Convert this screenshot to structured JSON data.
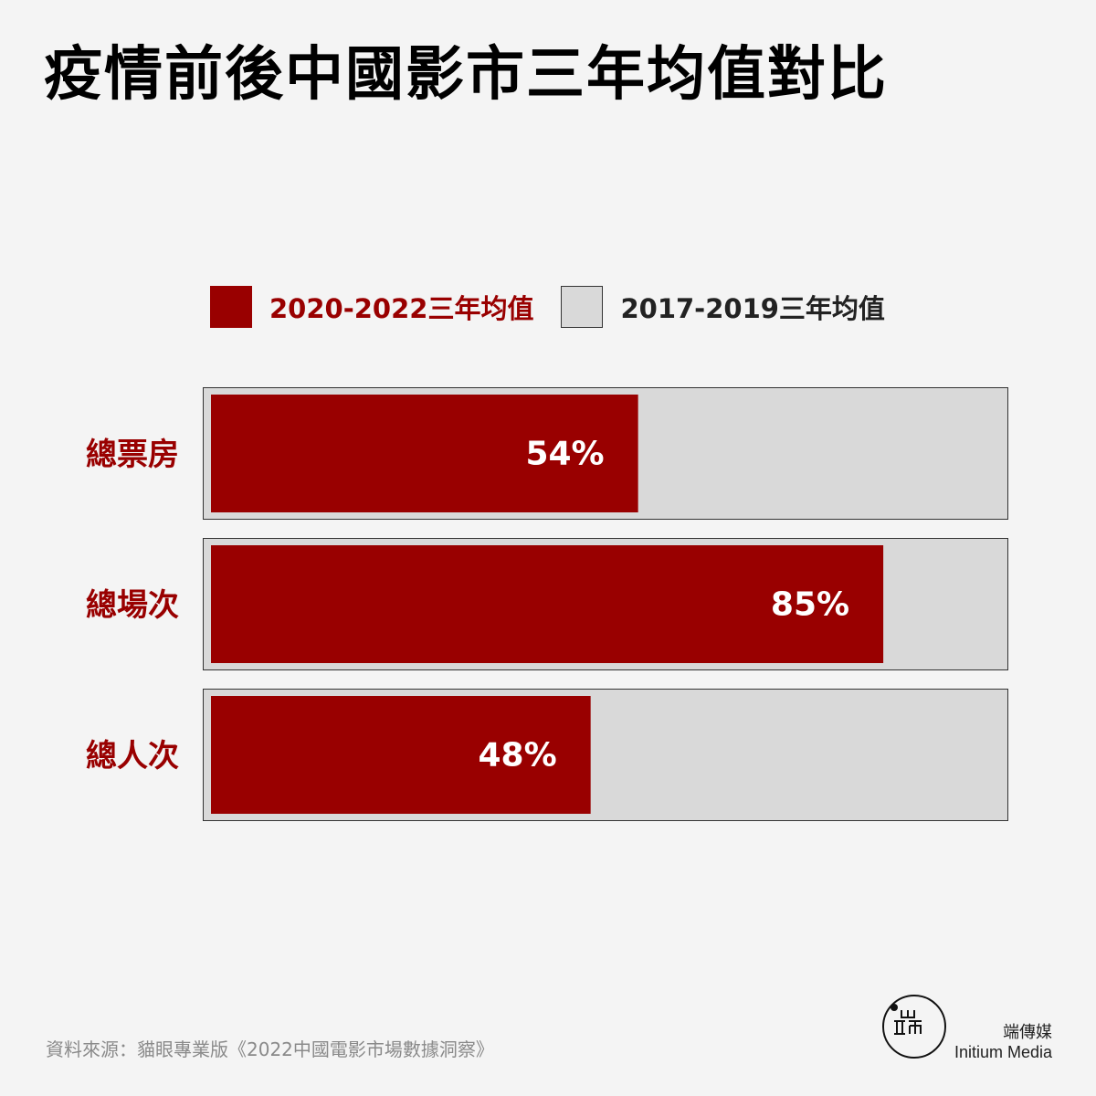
{
  "title": "疫情前後中國影市三年均值對比",
  "colors": {
    "accent": "#990000",
    "baseline": "#d9d9d9",
    "background": "#f4f4f4",
    "border": "#333333"
  },
  "legend": {
    "current": "2020-2022三年均值",
    "baseline": "2017-2019三年均值"
  },
  "chart_data": {
    "type": "bar",
    "orientation": "horizontal",
    "categories": [
      "總票房",
      "總場次",
      "總人次"
    ],
    "series": [
      {
        "name": "2020-2022三年均值",
        "values": [
          54,
          85,
          48
        ]
      },
      {
        "name": "2017-2019三年均值",
        "values": [
          100,
          100,
          100
        ]
      }
    ],
    "value_labels": [
      "54%",
      "85%",
      "48%"
    ],
    "xlim": [
      0,
      100
    ],
    "grid": false,
    "legend_position": "top"
  },
  "footer": {
    "source": "資料來源：貓眼專業版《2022中國電影市場數據洞察》",
    "brand_cn": "端傳媒",
    "brand_en": "Initium Media",
    "logo_glyphs": "端"
  }
}
